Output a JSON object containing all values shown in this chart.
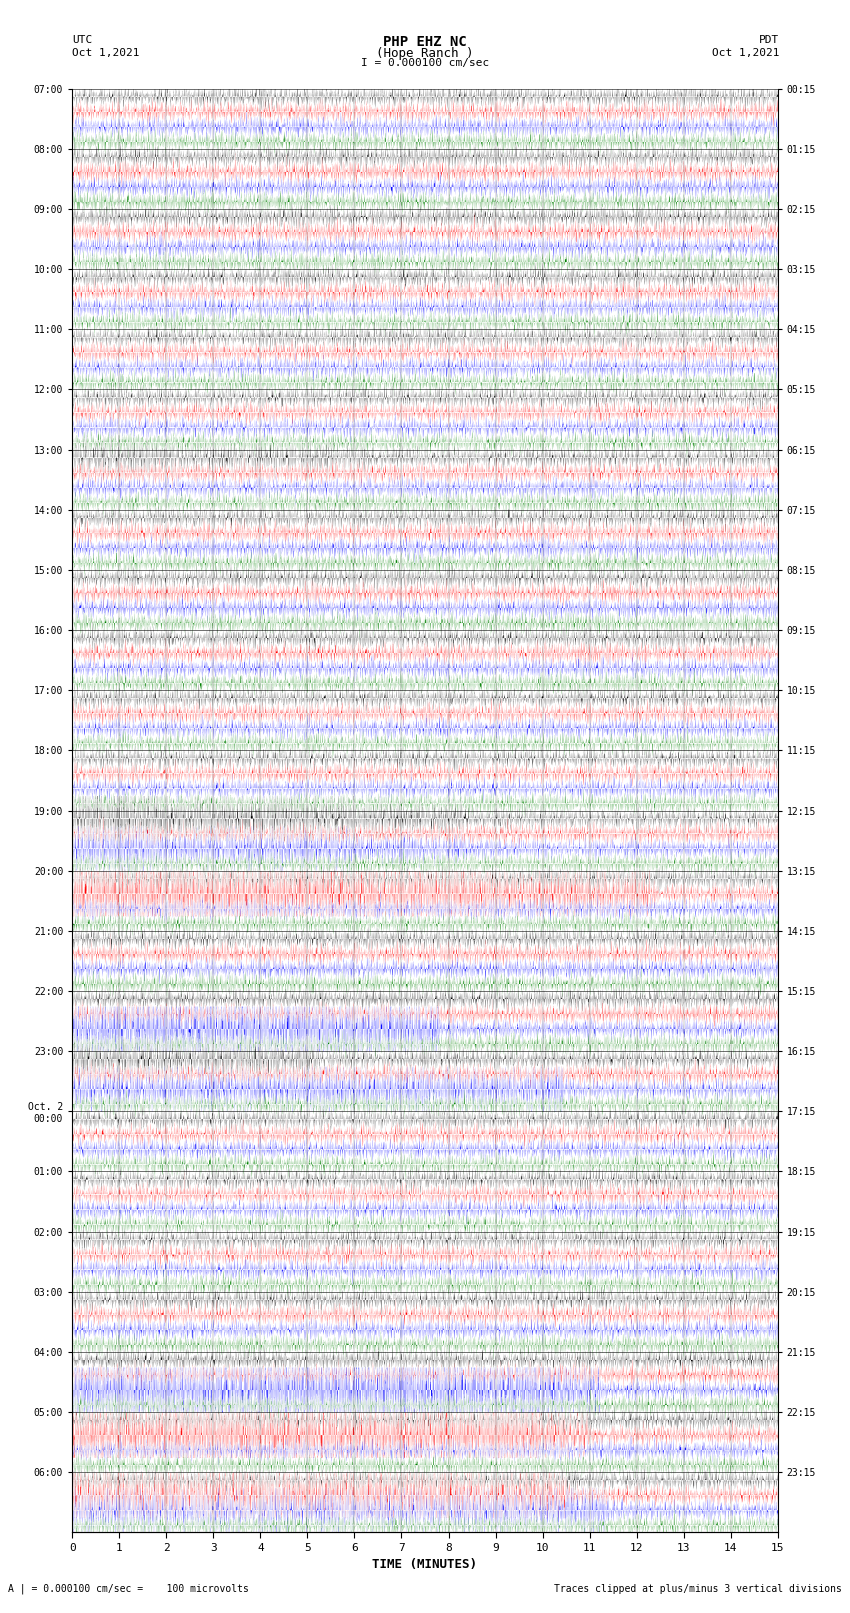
{
  "title_line1": "PHP EHZ NC",
  "title_line2": "(Hope Ranch )",
  "scale_label": "I = 0.000100 cm/sec",
  "left_label_line1": "UTC",
  "left_label_line2": "Oct 1,2021",
  "right_label_line1": "PDT",
  "right_label_line2": "Oct 1,2021",
  "bottom_label_left": "A | = 0.000100 cm/sec =    100 microvolts",
  "bottom_label_right": "Traces clipped at plus/minus 3 vertical divisions",
  "xlabel": "TIME (MINUTES)",
  "left_times": [
    "07:00",
    "08:00",
    "09:00",
    "10:00",
    "11:00",
    "12:00",
    "13:00",
    "14:00",
    "15:00",
    "16:00",
    "17:00",
    "18:00",
    "19:00",
    "20:00",
    "21:00",
    "22:00",
    "23:00",
    "Oct. 2\n00:00",
    "01:00",
    "02:00",
    "03:00",
    "04:00",
    "05:00",
    "06:00"
  ],
  "right_times": [
    "00:15",
    "01:15",
    "02:15",
    "03:15",
    "04:15",
    "05:15",
    "06:15",
    "07:15",
    "08:15",
    "09:15",
    "10:15",
    "11:15",
    "12:15",
    "13:15",
    "14:15",
    "15:15",
    "16:15",
    "17:15",
    "18:15",
    "19:15",
    "20:15",
    "21:15",
    "22:15",
    "23:15"
  ],
  "n_rows": 24,
  "n_traces_per_row": 4,
  "trace_colors": [
    "black",
    "red",
    "blue",
    "green"
  ],
  "minutes": 15,
  "background_color": "white",
  "fig_width": 8.5,
  "fig_height": 16.13,
  "dpi": 100
}
